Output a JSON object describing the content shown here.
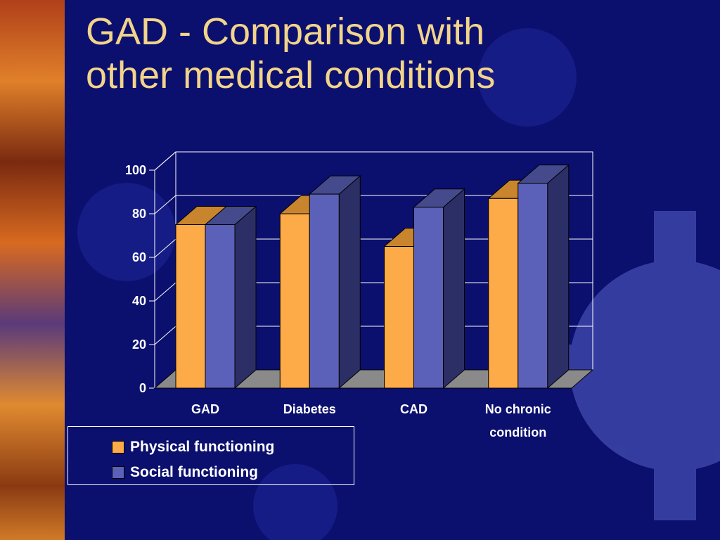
{
  "slide": {
    "title_line1": "GAD - Comparison with",
    "title_line2": "other medical conditions"
  },
  "colors": {
    "background": "#0b0f6e",
    "title": "#f2d48a",
    "physical": "#fdab48",
    "social": "#5b60b8",
    "gear": "#4a54b8"
  },
  "chart_data": {
    "type": "bar",
    "title": "",
    "xlabel": "",
    "ylabel": "",
    "ylim": [
      0,
      100
    ],
    "yticks": [
      "0",
      "20",
      "40",
      "60",
      "80",
      "100"
    ],
    "grid": true,
    "legend_position": "bottom-left",
    "categories": [
      [
        "GAD"
      ],
      [
        "Diabetes"
      ],
      [
        "CAD"
      ],
      [
        "No chronic",
        "condition"
      ]
    ],
    "series": [
      {
        "name": "Physical functioning",
        "values": [
          75,
          80,
          65,
          87
        ]
      },
      {
        "name": "Social functioning",
        "values": [
          75,
          89,
          83,
          94
        ]
      }
    ]
  }
}
